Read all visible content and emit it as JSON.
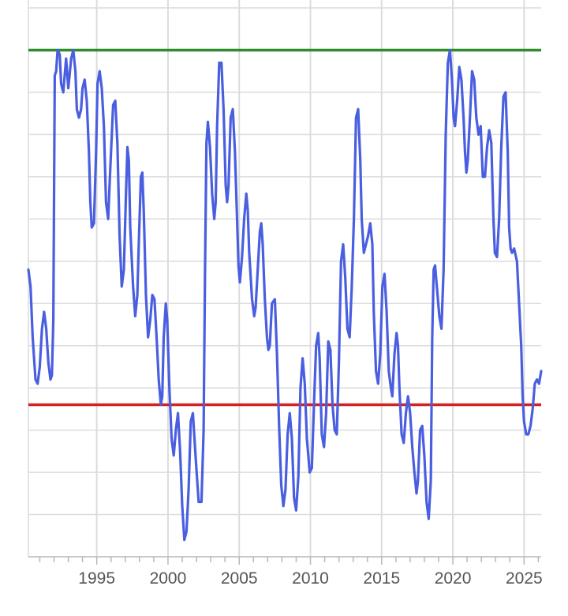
{
  "chart_data": {
    "type": "line",
    "title": "",
    "xlabel": "",
    "ylabel": "",
    "xlim": [
      1990.2,
      2026.2
    ],
    "ylim": [
      -4.0,
      2.5
    ],
    "x_ticks": [
      1995,
      2000,
      2005,
      2010,
      2015,
      2020,
      2025
    ],
    "x_tick_labels": [
      "1995",
      "2000",
      "2005",
      "2010",
      "2015",
      "2020",
      "2025"
    ],
    "y_grid_count": 13,
    "grid": true,
    "legend": "none",
    "reference_lines": [
      {
        "value": 2.0,
        "color": "#2e8b2e"
      },
      {
        "value": -2.2,
        "color": "#d42020"
      }
    ],
    "series": [
      {
        "color": "#4a5ee0",
        "points": [
          [
            1990.2,
            -0.6
          ],
          [
            1990.35,
            -0.8
          ],
          [
            1990.5,
            -1.4
          ],
          [
            1990.7,
            -1.9
          ],
          [
            1990.85,
            -1.95
          ],
          [
            1991.0,
            -1.75
          ],
          [
            1991.15,
            -1.3
          ],
          [
            1991.3,
            -1.1
          ],
          [
            1991.45,
            -1.3
          ],
          [
            1991.6,
            -1.7
          ],
          [
            1991.75,
            -1.9
          ],
          [
            1991.85,
            -1.85
          ],
          [
            1991.95,
            -1.2
          ],
          [
            1992.05,
            1.7
          ],
          [
            1992.15,
            1.75
          ],
          [
            1992.25,
            2.0
          ],
          [
            1992.4,
            1.95
          ],
          [
            1992.5,
            1.6
          ],
          [
            1992.65,
            1.5
          ],
          [
            1992.75,
            1.7
          ],
          [
            1992.85,
            1.9
          ],
          [
            1993.0,
            1.55
          ],
          [
            1993.2,
            1.9
          ],
          [
            1993.35,
            2.0
          ],
          [
            1993.5,
            1.75
          ],
          [
            1993.6,
            1.3
          ],
          [
            1993.75,
            1.2
          ],
          [
            1993.9,
            1.3
          ],
          [
            1994.0,
            1.55
          ],
          [
            1994.15,
            1.65
          ],
          [
            1994.3,
            1.4
          ],
          [
            1994.45,
            0.8
          ],
          [
            1994.55,
            0.2
          ],
          [
            1994.65,
            -0.1
          ],
          [
            1994.8,
            -0.05
          ],
          [
            1994.95,
            0.8
          ],
          [
            1995.05,
            1.6
          ],
          [
            1995.2,
            1.75
          ],
          [
            1995.35,
            1.55
          ],
          [
            1995.5,
            1.1
          ],
          [
            1995.65,
            0.2
          ],
          [
            1995.8,
            0.0
          ],
          [
            1995.95,
            0.6
          ],
          [
            1996.15,
            1.35
          ],
          [
            1996.3,
            1.4
          ],
          [
            1996.45,
            0.9
          ],
          [
            1996.6,
            -0.2
          ],
          [
            1996.75,
            -0.8
          ],
          [
            1996.9,
            -0.6
          ],
          [
            1997.05,
            0.3
          ],
          [
            1997.15,
            0.85
          ],
          [
            1997.25,
            0.7
          ],
          [
            1997.35,
            -0.1
          ],
          [
            1997.55,
            -0.8
          ],
          [
            1997.7,
            -1.15
          ],
          [
            1997.85,
            -0.9
          ],
          [
            1997.95,
            -0.3
          ],
          [
            1998.1,
            0.5
          ],
          [
            1998.2,
            0.55
          ],
          [
            1998.3,
            0.1
          ],
          [
            1998.45,
            -0.9
          ],
          [
            1998.6,
            -1.4
          ],
          [
            1998.75,
            -1.2
          ],
          [
            1998.9,
            -0.9
          ],
          [
            1999.05,
            -0.95
          ],
          [
            1999.2,
            -1.4
          ],
          [
            1999.35,
            -1.9
          ],
          [
            1999.5,
            -2.2
          ],
          [
            1999.6,
            -2.1
          ],
          [
            1999.7,
            -1.4
          ],
          [
            1999.85,
            -1.0
          ],
          [
            1999.95,
            -1.2
          ],
          [
            2000.1,
            -2.0
          ],
          [
            2000.25,
            -2.6
          ],
          [
            2000.4,
            -2.8
          ],
          [
            2000.55,
            -2.5
          ],
          [
            2000.7,
            -2.3
          ],
          [
            2000.85,
            -2.75
          ],
          [
            2001.0,
            -3.4
          ],
          [
            2001.15,
            -3.8
          ],
          [
            2001.3,
            -3.7
          ],
          [
            2001.45,
            -3.2
          ],
          [
            2001.6,
            -2.4
          ],
          [
            2001.75,
            -2.3
          ],
          [
            2001.95,
            -2.85
          ],
          [
            2002.15,
            -3.35
          ],
          [
            2002.35,
            -3.35
          ],
          [
            2002.5,
            -2.5
          ],
          [
            2002.6,
            -0.6
          ],
          [
            2002.7,
            0.9
          ],
          [
            2002.8,
            1.15
          ],
          [
            2002.95,
            0.85
          ],
          [
            2003.1,
            0.3
          ],
          [
            2003.25,
            0.0
          ],
          [
            2003.35,
            0.2
          ],
          [
            2003.45,
            1.1
          ],
          [
            2003.6,
            1.85
          ],
          [
            2003.75,
            1.85
          ],
          [
            2003.9,
            1.3
          ],
          [
            2004.05,
            0.4
          ],
          [
            2004.15,
            0.2
          ],
          [
            2004.25,
            0.4
          ],
          [
            2004.4,
            1.2
          ],
          [
            2004.55,
            1.3
          ],
          [
            2004.7,
            0.8
          ],
          [
            2004.85,
            0.0
          ],
          [
            2004.95,
            -0.55
          ],
          [
            2005.05,
            -0.75
          ],
          [
            2005.2,
            -0.45
          ],
          [
            2005.35,
            0.0
          ],
          [
            2005.5,
            0.3
          ],
          [
            2005.6,
            0.1
          ],
          [
            2005.7,
            -0.4
          ],
          [
            2005.9,
            -0.95
          ],
          [
            2006.05,
            -1.15
          ],
          [
            2006.15,
            -1.05
          ],
          [
            2006.3,
            -0.6
          ],
          [
            2006.45,
            -0.15
          ],
          [
            2006.55,
            -0.05
          ],
          [
            2006.65,
            -0.3
          ],
          [
            2006.8,
            -0.95
          ],
          [
            2006.95,
            -1.4
          ],
          [
            2007.05,
            -1.55
          ],
          [
            2007.15,
            -1.5
          ],
          [
            2007.3,
            -1.0
          ],
          [
            2007.5,
            -0.95
          ],
          [
            2007.65,
            -1.6
          ],
          [
            2007.8,
            -2.45
          ],
          [
            2007.95,
            -3.15
          ],
          [
            2008.1,
            -3.4
          ],
          [
            2008.25,
            -3.2
          ],
          [
            2008.4,
            -2.55
          ],
          [
            2008.55,
            -2.3
          ],
          [
            2008.7,
            -2.6
          ],
          [
            2008.85,
            -3.3
          ],
          [
            2009.0,
            -3.45
          ],
          [
            2009.15,
            -3.05
          ],
          [
            2009.3,
            -2.0
          ],
          [
            2009.45,
            -1.65
          ],
          [
            2009.6,
            -1.95
          ],
          [
            2009.75,
            -2.6
          ],
          [
            2009.95,
            -3.0
          ],
          [
            2010.1,
            -2.95
          ],
          [
            2010.25,
            -2.2
          ],
          [
            2010.4,
            -1.5
          ],
          [
            2010.55,
            -1.35
          ],
          [
            2010.65,
            -1.65
          ],
          [
            2010.8,
            -2.55
          ],
          [
            2010.95,
            -2.7
          ],
          [
            2011.1,
            -2.3
          ],
          [
            2011.25,
            -1.45
          ],
          [
            2011.4,
            -1.55
          ],
          [
            2011.55,
            -2.2
          ],
          [
            2011.7,
            -2.5
          ],
          [
            2011.85,
            -2.55
          ],
          [
            2012.0,
            -1.7
          ],
          [
            2012.15,
            -0.5
          ],
          [
            2012.3,
            -0.3
          ],
          [
            2012.45,
            -0.7
          ],
          [
            2012.6,
            -1.3
          ],
          [
            2012.75,
            -1.4
          ],
          [
            2012.9,
            -0.8
          ],
          [
            2013.05,
            0.0
          ],
          [
            2013.2,
            1.2
          ],
          [
            2013.35,
            1.3
          ],
          [
            2013.5,
            0.7
          ],
          [
            2013.6,
            0.0
          ],
          [
            2013.75,
            -0.4
          ],
          [
            2013.9,
            -0.3
          ],
          [
            2014.05,
            -0.2
          ],
          [
            2014.2,
            -0.05
          ],
          [
            2014.35,
            -0.3
          ],
          [
            2014.45,
            -1.1
          ],
          [
            2014.6,
            -1.8
          ],
          [
            2014.75,
            -1.95
          ],
          [
            2014.9,
            -1.6
          ],
          [
            2015.05,
            -0.8
          ],
          [
            2015.2,
            -0.65
          ],
          [
            2015.35,
            -1.1
          ],
          [
            2015.5,
            -1.8
          ],
          [
            2015.65,
            -2.0
          ],
          [
            2015.75,
            -2.1
          ],
          [
            2015.9,
            -1.6
          ],
          [
            2016.05,
            -1.35
          ],
          [
            2016.15,
            -1.5
          ],
          [
            2016.25,
            -2.0
          ],
          [
            2016.4,
            -2.55
          ],
          [
            2016.55,
            -2.65
          ],
          [
            2016.7,
            -2.3
          ],
          [
            2016.85,
            -2.1
          ],
          [
            2017.0,
            -2.3
          ],
          [
            2017.15,
            -2.7
          ],
          [
            2017.3,
            -3.0
          ],
          [
            2017.45,
            -3.25
          ],
          [
            2017.55,
            -3.1
          ],
          [
            2017.7,
            -2.5
          ],
          [
            2017.85,
            -2.45
          ],
          [
            2018.0,
            -2.8
          ],
          [
            2018.15,
            -3.35
          ],
          [
            2018.3,
            -3.55
          ],
          [
            2018.45,
            -3.1
          ],
          [
            2018.55,
            -1.4
          ],
          [
            2018.65,
            -0.6
          ],
          [
            2018.75,
            -0.55
          ],
          [
            2018.9,
            -0.85
          ],
          [
            2019.05,
            -1.15
          ],
          [
            2019.2,
            -1.3
          ],
          [
            2019.35,
            -0.6
          ],
          [
            2019.5,
            1.0
          ],
          [
            2019.65,
            1.85
          ],
          [
            2019.8,
            2.0
          ],
          [
            2019.95,
            1.6
          ],
          [
            2020.05,
            1.2
          ],
          [
            2020.15,
            1.1
          ],
          [
            2020.3,
            1.4
          ],
          [
            2020.45,
            1.8
          ],
          [
            2020.6,
            1.65
          ],
          [
            2020.75,
            1.2
          ],
          [
            2020.85,
            0.8
          ],
          [
            2020.95,
            0.55
          ],
          [
            2021.05,
            0.7
          ],
          [
            2021.2,
            1.2
          ],
          [
            2021.35,
            1.75
          ],
          [
            2021.5,
            1.65
          ],
          [
            2021.65,
            1.2
          ],
          [
            2021.8,
            1.0
          ],
          [
            2021.95,
            1.1
          ],
          [
            2022.1,
            0.5
          ],
          [
            2022.25,
            0.5
          ],
          [
            2022.4,
            0.85
          ],
          [
            2022.55,
            1.05
          ],
          [
            2022.7,
            0.9
          ],
          [
            2022.85,
            0.0
          ],
          [
            2022.95,
            -0.4
          ],
          [
            2023.1,
            -0.45
          ],
          [
            2023.25,
            0.0
          ],
          [
            2023.4,
            0.85
          ],
          [
            2023.55,
            1.45
          ],
          [
            2023.7,
            1.5
          ],
          [
            2023.85,
            0.8
          ],
          [
            2023.95,
            -0.1
          ],
          [
            2024.05,
            -0.35
          ],
          [
            2024.15,
            -0.4
          ],
          [
            2024.3,
            -0.35
          ],
          [
            2024.5,
            -0.5
          ],
          [
            2024.65,
            -1.0
          ],
          [
            2024.8,
            -1.5
          ],
          [
            2024.9,
            -2.1
          ],
          [
            2025.0,
            -2.4
          ],
          [
            2025.15,
            -2.55
          ],
          [
            2025.3,
            -2.55
          ],
          [
            2025.45,
            -2.45
          ],
          [
            2025.6,
            -2.25
          ],
          [
            2025.75,
            -1.95
          ],
          [
            2025.9,
            -1.9
          ],
          [
            2026.05,
            -1.95
          ],
          [
            2026.2,
            -1.8
          ]
        ]
      }
    ]
  }
}
